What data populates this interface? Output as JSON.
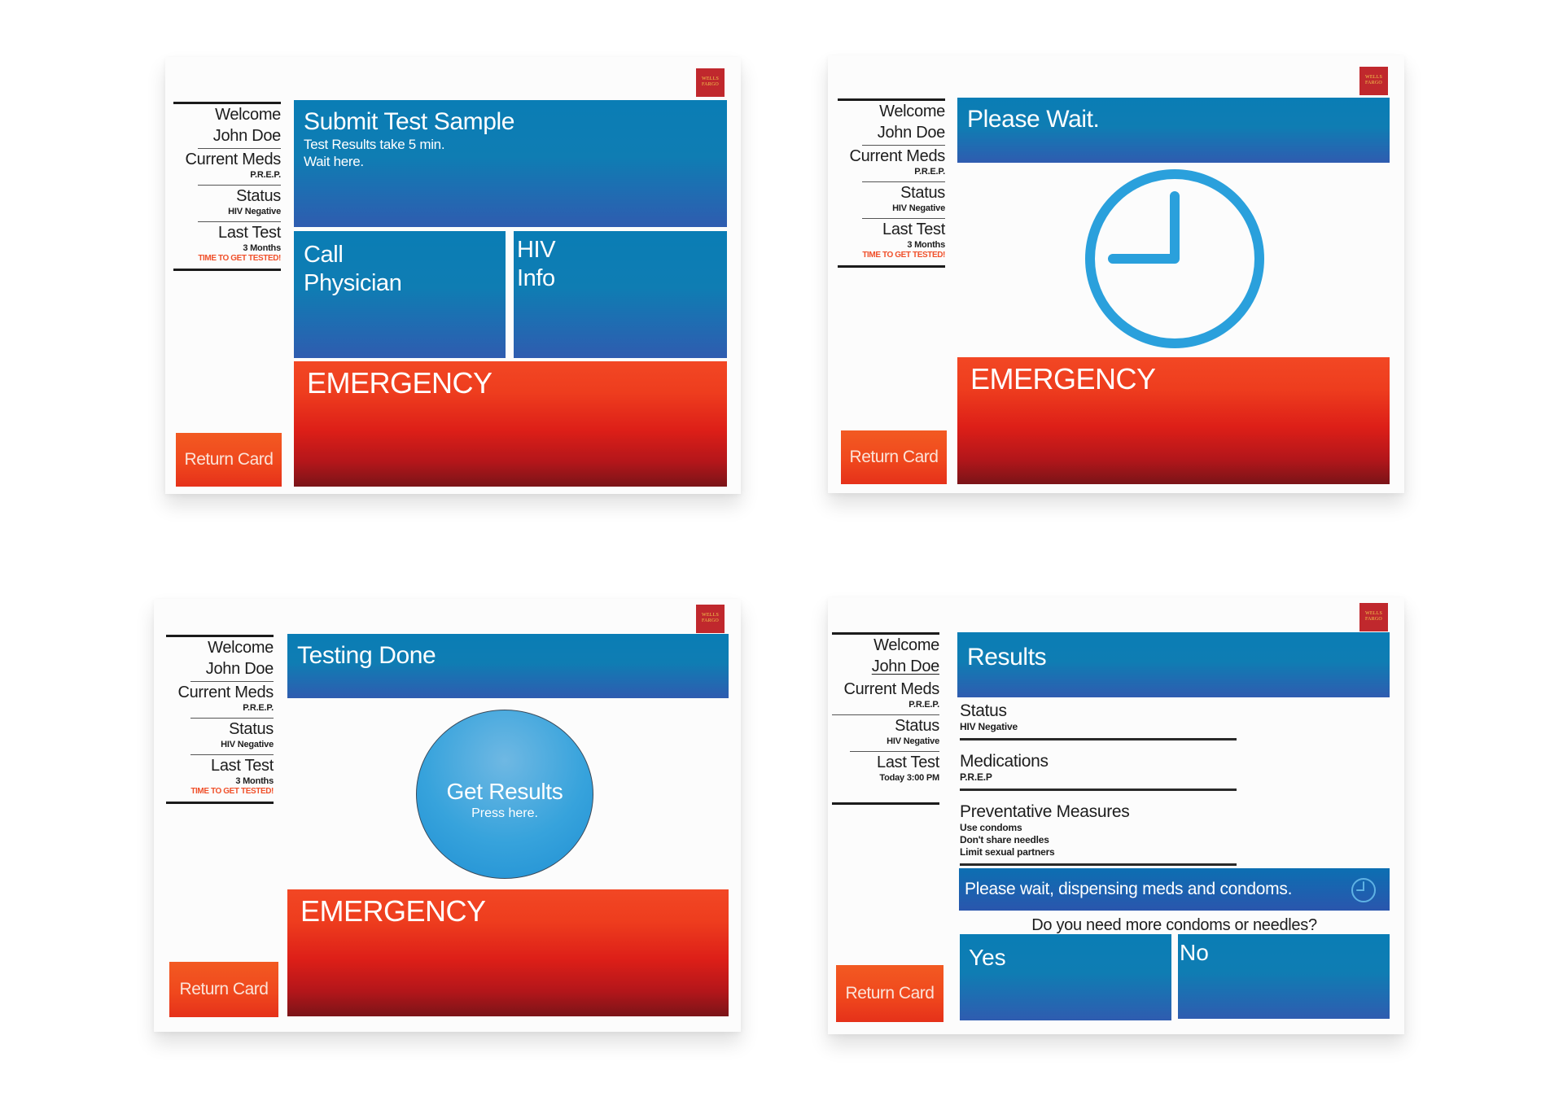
{
  "brand": {
    "logo_text": "WELLS FARGO",
    "colors": {
      "blue": "#0a7db5",
      "red": "#ee3d1e",
      "orange": "#f25a22",
      "clock": "#2aa0dc"
    }
  },
  "sidebar": {
    "welcome": "Welcome",
    "name": "John Doe",
    "meds_label": "Current Meds",
    "meds_value": "P.R.E.P.",
    "status_label": "Status",
    "status_value": "HIV Negative",
    "last_test_label": "Last Test",
    "last_test_value": "3 Months",
    "warning": "TIME TO GET TESTED!",
    "last_test_value_results": "Today 3:00 PM"
  },
  "return_card": "Return Card",
  "emergency": "EMERGENCY",
  "screen1": {
    "submit_title": "Submit Test Sample",
    "submit_line1": "Test Results take 5 min.",
    "submit_line2": "Wait here.",
    "call_line1": "Call",
    "call_line2": "Physician",
    "hiv_line1": "HIV",
    "hiv_line2": "Info"
  },
  "screen2": {
    "title": "Please Wait.",
    "icon": "clock-icon"
  },
  "screen3": {
    "title": "Testing Done",
    "button_title": "Get Results",
    "button_sub": "Press here."
  },
  "screen4": {
    "title": "Results",
    "items": [
      {
        "heading": "Status",
        "lines": [
          "HIV Negative"
        ]
      },
      {
        "heading": "Medications",
        "lines": [
          "P.R.E.P"
        ]
      },
      {
        "heading": "Preventative Measures",
        "lines": [
          "Use condoms",
          "Don't share needles",
          "Limit sexual partners"
        ]
      }
    ],
    "dispensing": "Please wait, dispensing meds and condoms.",
    "question": "Do you need more condoms or needles?",
    "yes": "Yes",
    "no": "No"
  }
}
